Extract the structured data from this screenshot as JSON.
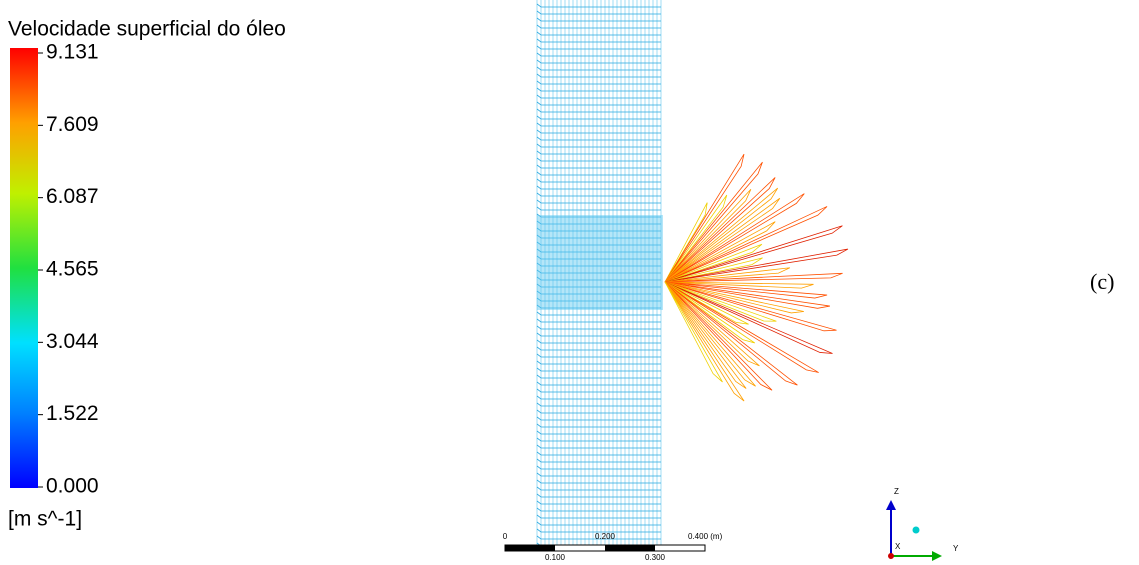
{
  "legend": {
    "title": "Velocidade superficial do óleo",
    "ticks": [
      "9.131",
      "7.609",
      "6.087",
      "4.565",
      "3.044",
      "1.522",
      "0.000"
    ],
    "unit": "[m s^-1]"
  },
  "scale_bar": {
    "top_labels": [
      "0",
      "0.200",
      "0.400 (m)"
    ],
    "bottom_labels": [
      "0.100",
      "0.300"
    ]
  },
  "axes": {
    "z": "Z",
    "y": "Y",
    "x": "X"
  },
  "caption": "(c)"
}
